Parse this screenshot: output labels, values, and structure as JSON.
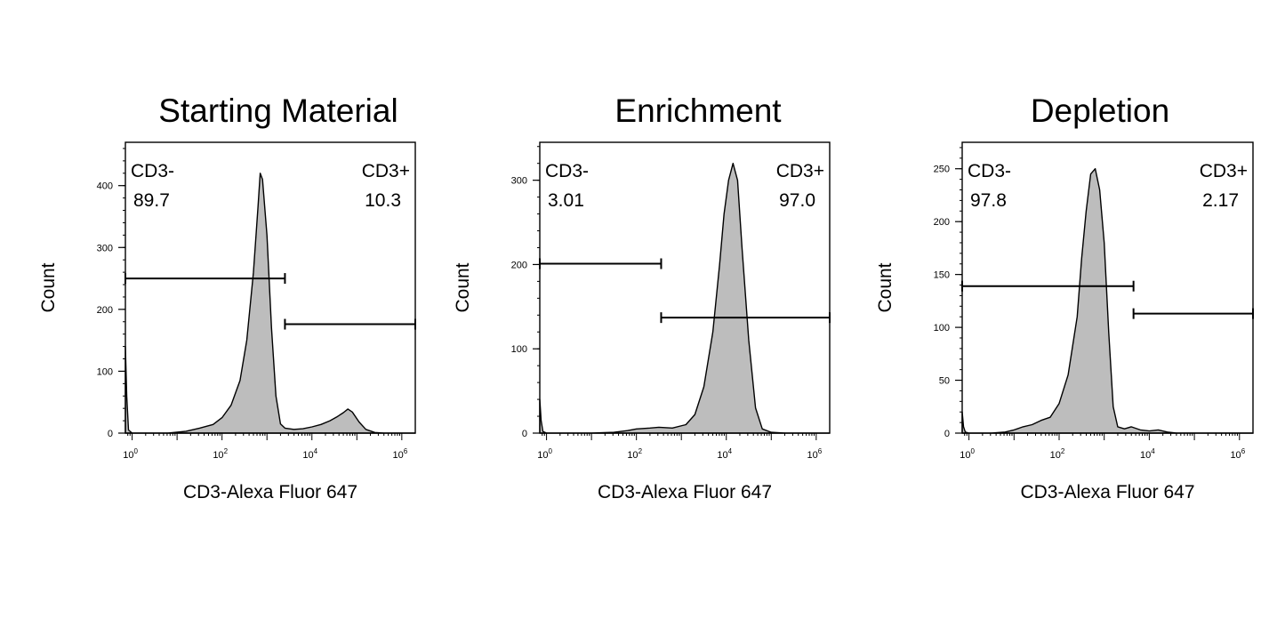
{
  "chart_data": [
    {
      "type": "area",
      "title": "Starting Material",
      "xlabel": "CD3-Alexa Fluor 647",
      "ylabel": "Count",
      "xscale": "log",
      "xlim_log10": [
        -0.15,
        6.3
      ],
      "ylim": [
        0,
        470
      ],
      "ytick_values": [
        0,
        100,
        200,
        300,
        400
      ],
      "ytick_labels": [
        "0",
        "100",
        "200",
        "300",
        "400"
      ],
      "minor_y_step": 20,
      "xtick_labels": [
        "10^0",
        "10^2",
        "10^4",
        "10^6"
      ],
      "fill_color": "#bdbdbd",
      "gates": [
        {
          "name": "CD3-",
          "value": "89.7",
          "y": 250,
          "x_start_log10": -0.15,
          "x_end_log10": 3.4,
          "position": "top-left"
        },
        {
          "name": "CD3+",
          "value": "10.3",
          "y": 176,
          "x_start_log10": 3.4,
          "x_end_log10": 6.3,
          "position": "top-right"
        }
      ],
      "histogram": {
        "x_log10": [
          -0.15,
          -0.12,
          -0.08,
          0.0,
          0.3,
          0.8,
          1.2,
          1.5,
          1.8,
          2.0,
          2.2,
          2.4,
          2.55,
          2.7,
          2.8,
          2.85,
          2.9,
          3.0,
          3.1,
          3.2,
          3.3,
          3.4,
          3.6,
          3.8,
          4.0,
          4.2,
          4.4,
          4.55,
          4.7,
          4.8,
          4.9,
          5.05,
          5.2,
          5.4,
          5.6,
          6.3
        ],
        "counts": [
          140,
          60,
          5,
          0,
          0,
          0,
          3,
          8,
          14,
          25,
          45,
          85,
          150,
          260,
          365,
          420,
          410,
          320,
          170,
          60,
          15,
          8,
          6,
          7,
          10,
          14,
          20,
          26,
          33,
          39,
          34,
          18,
          6,
          1,
          0,
          0
        ]
      }
    },
    {
      "type": "area",
      "title": "Enrichment",
      "xlabel": "CD3-Alexa Fluor 647",
      "ylabel": "Count",
      "xscale": "log",
      "xlim_log10": [
        -0.15,
        6.3
      ],
      "ylim": [
        0,
        345
      ],
      "ytick_values": [
        0,
        100,
        200,
        300
      ],
      "ytick_labels": [
        "0",
        "100",
        "200",
        "300"
      ],
      "minor_y_step": 20,
      "xtick_labels": [
        "10^0",
        "10^2",
        "10^4",
        "10^6"
      ],
      "fill_color": "#bdbdbd",
      "gates": [
        {
          "name": "CD3-",
          "value": "3.01",
          "y": 201,
          "x_start_log10": -0.15,
          "x_end_log10": 2.55,
          "position": "top-left"
        },
        {
          "name": "CD3+",
          "value": "97.0",
          "y": 137,
          "x_start_log10": 2.55,
          "x_end_log10": 6.3,
          "position": "top-right"
        }
      ],
      "histogram": {
        "x_log10": [
          -0.15,
          -0.12,
          -0.08,
          0.0,
          0.5,
          1.0,
          1.5,
          1.8,
          2.0,
          2.3,
          2.5,
          2.8,
          3.1,
          3.3,
          3.5,
          3.7,
          3.85,
          3.95,
          4.05,
          4.15,
          4.25,
          4.35,
          4.5,
          4.65,
          4.8,
          5.0,
          5.3,
          6.3
        ],
        "counts": [
          40,
          15,
          2,
          0,
          0,
          0,
          1,
          3,
          5,
          6,
          7,
          6,
          10,
          22,
          55,
          120,
          200,
          260,
          300,
          320,
          300,
          220,
          110,
          30,
          5,
          1,
          0,
          0
        ]
      }
    },
    {
      "type": "area",
      "title": "Depletion",
      "xlabel": "CD3-Alexa Fluor 647",
      "ylabel": "Count",
      "xscale": "log",
      "xlim_log10": [
        -0.15,
        6.3
      ],
      "ylim": [
        0,
        275
      ],
      "ytick_values": [
        0,
        50,
        100,
        150,
        200,
        250
      ],
      "ytick_labels": [
        "0",
        "50",
        "100",
        "150",
        "200",
        "250"
      ],
      "minor_y_step": 10,
      "xtick_labels": [
        "10^0",
        "10^2",
        "10^4",
        "10^6"
      ],
      "fill_color": "#bdbdbd",
      "gates": [
        {
          "name": "CD3-",
          "value": "97.8",
          "y": 139,
          "x_start_log10": -0.15,
          "x_end_log10": 3.65,
          "position": "top-left"
        },
        {
          "name": "CD3+",
          "value": "2.17",
          "y": 113,
          "x_start_log10": 3.65,
          "x_end_log10": 6.3,
          "position": "top-right"
        }
      ],
      "histogram": {
        "x_log10": [
          -0.15,
          -0.12,
          -0.08,
          0.0,
          0.5,
          0.8,
          1.0,
          1.2,
          1.4,
          1.6,
          1.8,
          2.0,
          2.2,
          2.4,
          2.5,
          2.6,
          2.7,
          2.8,
          2.9,
          3.0,
          3.1,
          3.2,
          3.3,
          3.45,
          3.6,
          3.8,
          4.0,
          4.2,
          4.4,
          4.6,
          6.3
        ],
        "counts": [
          20,
          6,
          1,
          0,
          0,
          1,
          3,
          6,
          8,
          12,
          15,
          28,
          55,
          110,
          165,
          210,
          245,
          250,
          230,
          180,
          95,
          25,
          6,
          4,
          6,
          3,
          2,
          3,
          1,
          0,
          0
        ]
      }
    }
  ]
}
